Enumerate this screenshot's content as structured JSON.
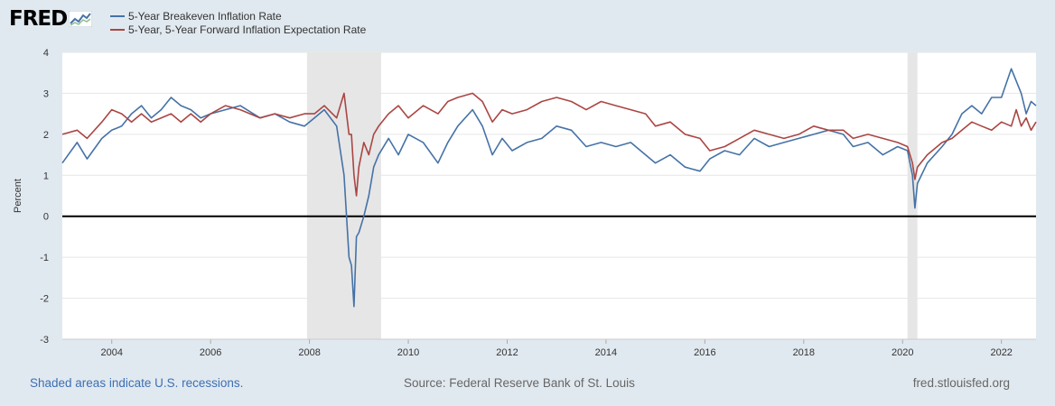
{
  "header": {
    "logo_text": "FRED",
    "logo_icon": "fred-chart-icon"
  },
  "chart_data": {
    "type": "line",
    "ylabel": "Percent",
    "ylim": [
      -3,
      4
    ],
    "yticks": [
      "4",
      "3",
      "2",
      "1",
      "0",
      "-1",
      "-2",
      "-3"
    ],
    "xlim": [
      2003.0,
      2022.7
    ],
    "xticks": [
      "2004",
      "2006",
      "2008",
      "2010",
      "2012",
      "2014",
      "2016",
      "2018",
      "2020",
      "2022"
    ],
    "grid": "horizontal",
    "legend_placement": "top-left",
    "recessions": [
      [
        2007.95,
        2009.45
      ],
      [
        2020.1,
        2020.3
      ]
    ],
    "series": [
      {
        "name": "5-Year Breakeven Inflation Rate",
        "color": "#4572a7",
        "x": [
          2003.0,
          2003.3,
          2003.5,
          2003.8,
          2004.0,
          2004.2,
          2004.4,
          2004.6,
          2004.8,
          2005.0,
          2005.2,
          2005.4,
          2005.6,
          2005.8,
          2006.0,
          2006.3,
          2006.6,
          2007.0,
          2007.3,
          2007.6,
          2007.9,
          2008.1,
          2008.3,
          2008.55,
          2008.7,
          2008.8,
          2008.85,
          2008.9,
          2008.95,
          2009.0,
          2009.1,
          2009.2,
          2009.3,
          2009.4,
          2009.6,
          2009.8,
          2010.0,
          2010.3,
          2010.6,
          2010.8,
          2011.0,
          2011.3,
          2011.5,
          2011.7,
          2011.9,
          2012.1,
          2012.4,
          2012.7,
          2013.0,
          2013.3,
          2013.6,
          2013.9,
          2014.2,
          2014.5,
          2014.8,
          2015.0,
          2015.3,
          2015.6,
          2015.9,
          2016.1,
          2016.4,
          2016.7,
          2017.0,
          2017.3,
          2017.6,
          2017.9,
          2018.2,
          2018.5,
          2018.8,
          2019.0,
          2019.3,
          2019.6,
          2019.9,
          2020.1,
          2020.2,
          2020.25,
          2020.3,
          2020.5,
          2020.8,
          2021.0,
          2021.2,
          2021.4,
          2021.6,
          2021.8,
          2022.0,
          2022.2,
          2022.3,
          2022.4,
          2022.5,
          2022.6,
          2022.7
        ],
        "values": [
          1.3,
          1.8,
          1.4,
          1.9,
          2.1,
          2.2,
          2.5,
          2.7,
          2.4,
          2.6,
          2.9,
          2.7,
          2.6,
          2.4,
          2.5,
          2.6,
          2.7,
          2.4,
          2.5,
          2.3,
          2.2,
          2.4,
          2.6,
          2.2,
          1.0,
          -1.0,
          -1.2,
          -2.2,
          -0.5,
          -0.4,
          0.0,
          0.5,
          1.2,
          1.5,
          1.9,
          1.5,
          2.0,
          1.8,
          1.3,
          1.8,
          2.2,
          2.6,
          2.2,
          1.5,
          1.9,
          1.6,
          1.8,
          1.9,
          2.2,
          2.1,
          1.7,
          1.8,
          1.7,
          1.8,
          1.5,
          1.3,
          1.5,
          1.2,
          1.1,
          1.4,
          1.6,
          1.5,
          1.9,
          1.7,
          1.8,
          1.9,
          2.0,
          2.1,
          2.0,
          1.7,
          1.8,
          1.5,
          1.7,
          1.6,
          1.0,
          0.2,
          0.8,
          1.3,
          1.7,
          2.0,
          2.5,
          2.7,
          2.5,
          2.9,
          2.9,
          3.6,
          3.3,
          3.0,
          2.5,
          2.8,
          2.7
        ]
      },
      {
        "name": "5-Year, 5-Year Forward Inflation Expectation Rate",
        "color": "#aa4643",
        "x": [
          2003.0,
          2003.3,
          2003.5,
          2003.8,
          2004.0,
          2004.2,
          2004.4,
          2004.6,
          2004.8,
          2005.0,
          2005.2,
          2005.4,
          2005.6,
          2005.8,
          2006.0,
          2006.3,
          2006.6,
          2007.0,
          2007.3,
          2007.6,
          2007.9,
          2008.1,
          2008.3,
          2008.55,
          2008.7,
          2008.8,
          2008.85,
          2008.9,
          2008.95,
          2009.0,
          2009.1,
          2009.2,
          2009.3,
          2009.4,
          2009.6,
          2009.8,
          2010.0,
          2010.3,
          2010.6,
          2010.8,
          2011.0,
          2011.3,
          2011.5,
          2011.7,
          2011.9,
          2012.1,
          2012.4,
          2012.7,
          2013.0,
          2013.3,
          2013.6,
          2013.9,
          2014.2,
          2014.5,
          2014.8,
          2015.0,
          2015.3,
          2015.6,
          2015.9,
          2016.1,
          2016.4,
          2016.7,
          2017.0,
          2017.3,
          2017.6,
          2017.9,
          2018.2,
          2018.5,
          2018.8,
          2019.0,
          2019.3,
          2019.6,
          2019.9,
          2020.1,
          2020.2,
          2020.25,
          2020.3,
          2020.5,
          2020.8,
          2021.0,
          2021.2,
          2021.4,
          2021.6,
          2021.8,
          2022.0,
          2022.2,
          2022.3,
          2022.4,
          2022.5,
          2022.6,
          2022.7
        ],
        "values": [
          2.0,
          2.1,
          1.9,
          2.3,
          2.6,
          2.5,
          2.3,
          2.5,
          2.3,
          2.4,
          2.5,
          2.3,
          2.5,
          2.3,
          2.5,
          2.7,
          2.6,
          2.4,
          2.5,
          2.4,
          2.5,
          2.5,
          2.7,
          2.4,
          3.0,
          2.0,
          2.0,
          1.0,
          0.5,
          1.2,
          1.8,
          1.5,
          2.0,
          2.2,
          2.5,
          2.7,
          2.4,
          2.7,
          2.5,
          2.8,
          2.9,
          3.0,
          2.8,
          2.3,
          2.6,
          2.5,
          2.6,
          2.8,
          2.9,
          2.8,
          2.6,
          2.8,
          2.7,
          2.6,
          2.5,
          2.2,
          2.3,
          2.0,
          1.9,
          1.6,
          1.7,
          1.9,
          2.1,
          2.0,
          1.9,
          2.0,
          2.2,
          2.1,
          2.1,
          1.9,
          2.0,
          1.9,
          1.8,
          1.7,
          1.3,
          0.9,
          1.2,
          1.5,
          1.8,
          1.9,
          2.1,
          2.3,
          2.2,
          2.1,
          2.3,
          2.2,
          2.6,
          2.2,
          2.4,
          2.1,
          2.3
        ]
      }
    ],
    "zero_line": 0
  },
  "footer": {
    "note": "Shaded areas indicate U.S. recessions.",
    "source": "Source: Federal Reserve Bank of St. Louis",
    "site": "fred.stlouisfed.org"
  }
}
